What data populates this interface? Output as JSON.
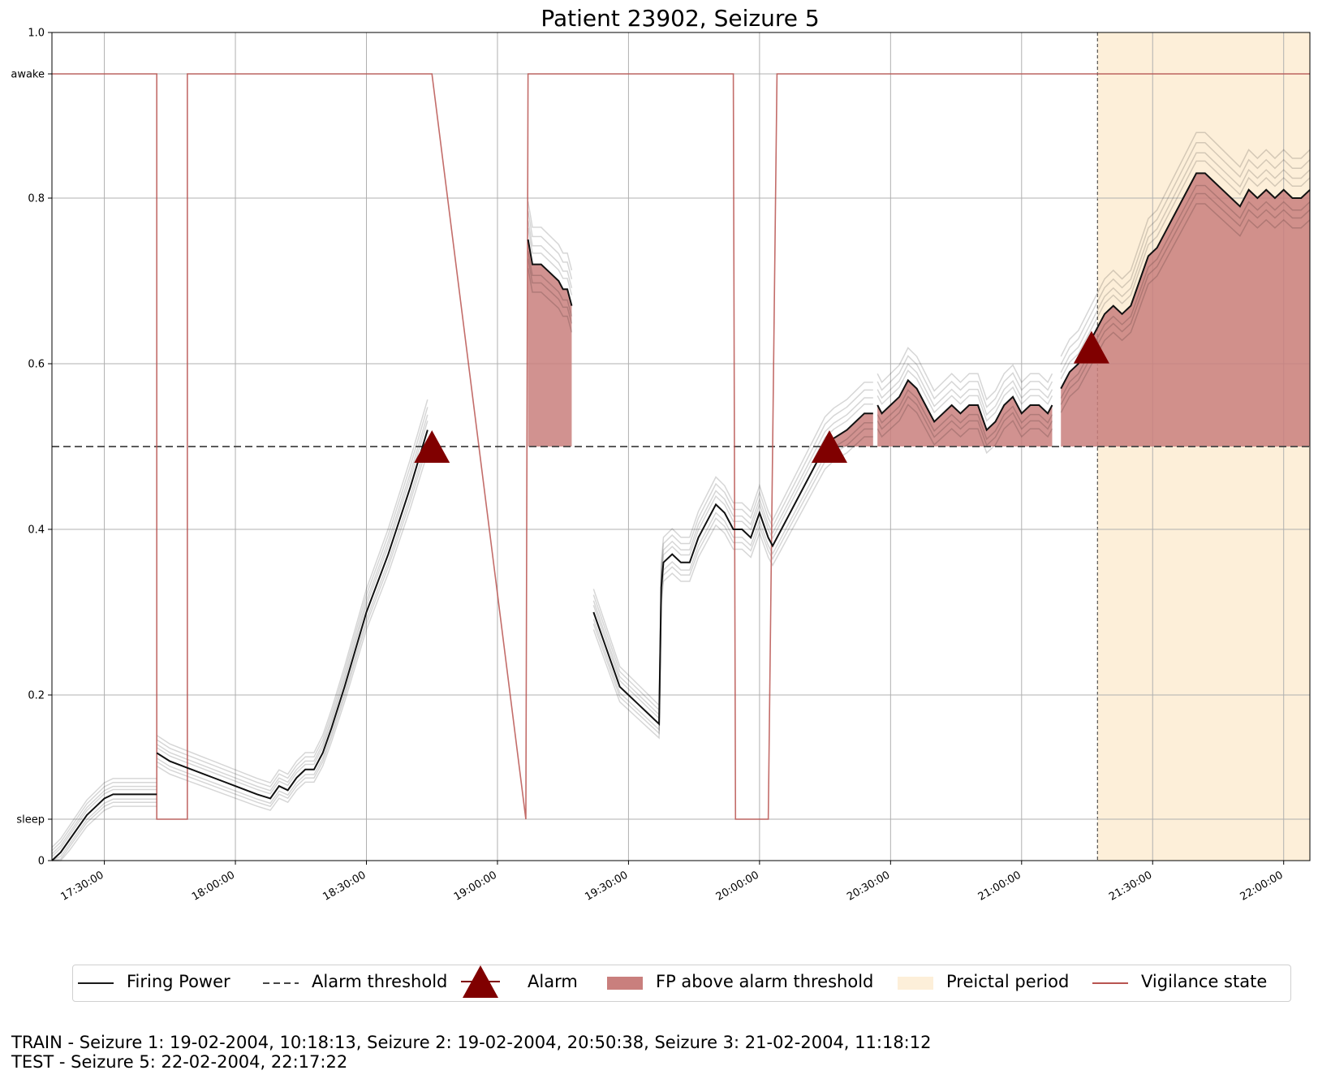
{
  "chart_data": {
    "type": "line",
    "title": "Patient 23902, Seizure 5",
    "xlabel": "",
    "ylabel": "",
    "xlim": [
      "17:18:00",
      "22:06:00"
    ],
    "ylim": [
      0,
      1.0
    ],
    "grid": true,
    "x_ticks": [
      "17:30:00",
      "18:00:00",
      "18:30:00",
      "19:00:00",
      "19:30:00",
      "20:00:00",
      "20:30:00",
      "21:00:00",
      "21:30:00",
      "22:00:00"
    ],
    "y_ticks": [
      {
        "value": 0,
        "label": "0"
      },
      {
        "value": 0.05,
        "label": "sleep"
      },
      {
        "value": 0.2,
        "label": "0.2"
      },
      {
        "value": 0.4,
        "label": "0.4"
      },
      {
        "value": 0.6,
        "label": "0.6"
      },
      {
        "value": 0.8,
        "label": "0.8"
      },
      {
        "value": 0.95,
        "label": "awake"
      },
      {
        "value": 1.0,
        "label": "1.0"
      }
    ],
    "alarm_threshold": 0.5,
    "series": [
      {
        "name": "Firing Power",
        "color": "#000000",
        "segments": [
          [
            [
              "17:18:00",
              0.0
            ],
            [
              "17:20:00",
              0.01
            ],
            [
              "17:22:00",
              0.025
            ],
            [
              "17:24:00",
              0.04
            ],
            [
              "17:26:00",
              0.055
            ],
            [
              "17:28:00",
              0.065
            ],
            [
              "17:30:00",
              0.075
            ],
            [
              "17:32:00",
              0.08
            ],
            [
              "17:35:00",
              0.08
            ],
            [
              "17:40:00",
              0.08
            ],
            [
              "17:42:00",
              0.08
            ]
          ],
          [
            [
              "17:42:00",
              0.13
            ],
            [
              "17:45:00",
              0.12
            ],
            [
              "17:50:00",
              0.11
            ],
            [
              "17:55:00",
              0.1
            ],
            [
              "18:00:00",
              0.09
            ],
            [
              "18:05:00",
              0.08
            ],
            [
              "18:08:00",
              0.075
            ],
            [
              "18:10:00",
              0.09
            ],
            [
              "18:12:00",
              0.085
            ],
            [
              "18:14:00",
              0.1
            ],
            [
              "18:16:00",
              0.11
            ],
            [
              "18:18:00",
              0.11
            ],
            [
              "18:20:00",
              0.13
            ],
            [
              "18:22:00",
              0.16
            ],
            [
              "18:25:00",
              0.21
            ],
            [
              "18:30:00",
              0.3
            ],
            [
              "18:35:00",
              0.37
            ],
            [
              "18:40:00",
              0.45
            ],
            [
              "18:44:00",
              0.52
            ]
          ],
          [
            [
              "19:07:00",
              0.75
            ],
            [
              "19:08:00",
              0.72
            ],
            [
              "19:10:00",
              0.72
            ],
            [
              "19:12:00",
              0.71
            ],
            [
              "19:14:00",
              0.7
            ],
            [
              "19:15:00",
              0.69
            ],
            [
              "19:16:00",
              0.69
            ],
            [
              "19:17:00",
              0.67
            ]
          ],
          [
            [
              "19:22:00",
              0.3
            ],
            [
              "19:24:00",
              0.27
            ],
            [
              "19:26:00",
              0.24
            ],
            [
              "19:28:00",
              0.21
            ],
            [
              "19:30:00",
              0.2
            ],
            [
              "19:32:00",
              0.19
            ],
            [
              "19:34:00",
              0.18
            ],
            [
              "19:36:00",
              0.17
            ],
            [
              "19:37:00",
              0.165
            ],
            [
              "19:37:30",
              0.33
            ],
            [
              "19:38:00",
              0.36
            ],
            [
              "19:40:00",
              0.37
            ],
            [
              "19:42:00",
              0.36
            ],
            [
              "19:44:00",
              0.36
            ],
            [
              "19:46:00",
              0.39
            ],
            [
              "19:48:00",
              0.41
            ],
            [
              "19:50:00",
              0.43
            ],
            [
              "19:52:00",
              0.42
            ],
            [
              "19:54:00",
              0.4
            ],
            [
              "19:56:00",
              0.4
            ],
            [
              "19:58:00",
              0.39
            ],
            [
              "20:00:00",
              0.42
            ],
            [
              "20:02:00",
              0.39
            ],
            [
              "20:03:00",
              0.38
            ],
            [
              "20:05:00",
              0.4
            ],
            [
              "20:07:00",
              0.42
            ],
            [
              "20:10:00",
              0.45
            ],
            [
              "20:13:00",
              0.48
            ],
            [
              "20:15:00",
              0.5
            ],
            [
              "20:17:00",
              0.51
            ],
            [
              "20:20:00",
              0.52
            ],
            [
              "20:22:00",
              0.53
            ],
            [
              "20:24:00",
              0.54
            ],
            [
              "20:26:00",
              0.54
            ]
          ],
          [
            [
              "20:27:00",
              0.55
            ],
            [
              "20:28:00",
              0.54
            ],
            [
              "20:30:00",
              0.55
            ],
            [
              "20:32:00",
              0.56
            ],
            [
              "20:34:00",
              0.58
            ],
            [
              "20:36:00",
              0.57
            ],
            [
              "20:38:00",
              0.55
            ],
            [
              "20:40:00",
              0.53
            ],
            [
              "20:42:00",
              0.54
            ],
            [
              "20:44:00",
              0.55
            ],
            [
              "20:46:00",
              0.54
            ],
            [
              "20:48:00",
              0.55
            ],
            [
              "20:50:00",
              0.55
            ],
            [
              "20:52:00",
              0.52
            ],
            [
              "20:54:00",
              0.53
            ],
            [
              "20:56:00",
              0.55
            ],
            [
              "20:58:00",
              0.56
            ],
            [
              "21:00:00",
              0.54
            ],
            [
              "21:02:00",
              0.55
            ],
            [
              "21:04:00",
              0.55
            ],
            [
              "21:06:00",
              0.54
            ],
            [
              "21:07:00",
              0.55
            ]
          ],
          [
            [
              "21:09:00",
              0.57
            ],
            [
              "21:11:00",
              0.59
            ],
            [
              "21:13:00",
              0.6
            ],
            [
              "21:15:00",
              0.62
            ],
            [
              "21:17:00",
              0.64
            ],
            [
              "21:19:00",
              0.66
            ],
            [
              "21:21:00",
              0.67
            ],
            [
              "21:23:00",
              0.66
            ],
            [
              "21:25:00",
              0.67
            ],
            [
              "21:27:00",
              0.7
            ],
            [
              "21:29:00",
              0.73
            ],
            [
              "21:31:00",
              0.74
            ],
            [
              "21:33:00",
              0.76
            ],
            [
              "21:35:00",
              0.78
            ],
            [
              "21:37:00",
              0.8
            ],
            [
              "21:40:00",
              0.83
            ],
            [
              "21:42:00",
              0.83
            ],
            [
              "21:44:00",
              0.82
            ],
            [
              "21:46:00",
              0.81
            ],
            [
              "21:48:00",
              0.8
            ],
            [
              "21:50:00",
              0.79
            ],
            [
              "21:52:00",
              0.81
            ],
            [
              "21:54:00",
              0.8
            ],
            [
              "21:56:00",
              0.81
            ],
            [
              "21:58:00",
              0.8
            ],
            [
              "22:00:00",
              0.81
            ],
            [
              "22:02:00",
              0.8
            ],
            [
              "22:04:00",
              0.8
            ],
            [
              "22:06:00",
              0.81
            ]
          ]
        ]
      },
      {
        "name": "Vigilance state",
        "color": "#b85450",
        "points": [
          [
            "17:18:00",
            0.95
          ],
          [
            "17:42:00",
            0.95
          ],
          [
            "17:42:00",
            0.05
          ],
          [
            "17:49:00",
            0.05
          ],
          [
            "17:49:00",
            0.95
          ],
          [
            "18:45:00",
            0.95
          ],
          [
            "19:06:30",
            0.05
          ],
          [
            "19:07:00",
            0.95
          ],
          [
            "19:54:00",
            0.95
          ],
          [
            "19:54:30",
            0.05
          ],
          [
            "20:02:00",
            0.05
          ],
          [
            "20:04:00",
            0.95
          ],
          [
            "22:06:00",
            0.95
          ]
        ]
      }
    ],
    "alarms": [
      [
        "18:45:00",
        0.5
      ],
      [
        "20:16:00",
        0.5
      ],
      [
        "21:16:00",
        0.62
      ]
    ],
    "fp_above_threshold_note": "filled region between Firing Power and Alarm threshold",
    "preictal_period": [
      "21:17:22",
      "22:06:00"
    ],
    "legend": {
      "position": "bottom",
      "entries": [
        "Firing Power",
        "Alarm threshold",
        "Alarm",
        "FP above alarm threshold",
        "Preictal period",
        "Vigilance state"
      ]
    },
    "colors": {
      "firing_power": "#000000",
      "threshold": "#444444",
      "alarm": "#800000",
      "fp_fill": "#c97f7d",
      "preictal": "#fdefd9",
      "vigilance": "#b85450",
      "grid": "#b0b0b0"
    }
  },
  "footer": {
    "train": "TRAIN - Seizure 1: 19-02-2004, 10:18:13, Seizure 2: 19-02-2004, 20:50:38, Seizure 3: 21-02-2004, 11:18:12",
    "test": "TEST - Seizure 5: 22-02-2004, 22:17:22"
  }
}
